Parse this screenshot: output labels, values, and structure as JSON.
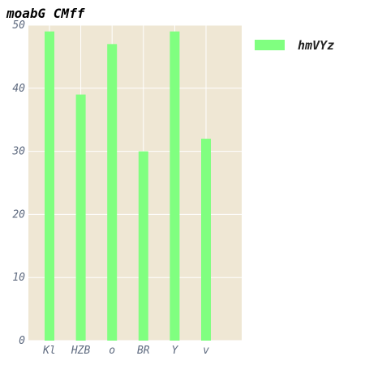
{
  "chart_data": {
    "type": "bar",
    "title": "moabG CMff",
    "xlabel": "",
    "ylabel": "",
    "categories": [
      "Kl",
      "HZB",
      "o",
      "BR",
      "Y",
      "v"
    ],
    "series": [
      {
        "name": "hmVYz",
        "values": [
          49,
          39,
          47,
          30,
          49,
          32
        ]
      }
    ],
    "ylim": [
      0,
      50
    ],
    "yticks": [
      0,
      10,
      20,
      30,
      40,
      50
    ],
    "grid": true,
    "legend_position": "top-right",
    "colors": {
      "bar": "#80ff80",
      "plot_background": "#efe7d4",
      "grid": "#ffffff",
      "tick_text": "#5f6b80"
    }
  }
}
